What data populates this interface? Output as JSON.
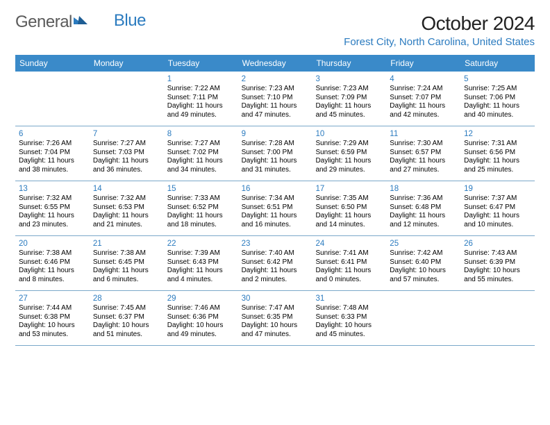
{
  "branding": {
    "logo_part1": "General",
    "logo_part2": "Blue"
  },
  "header": {
    "month_title": "October 2024",
    "location": "Forest City, North Carolina, United States"
  },
  "colors": {
    "header_bg": "#3a8ac9",
    "accent": "#2b7bbf",
    "divider": "#7aa8c9",
    "logo_gray": "#5a5a5a"
  },
  "day_names": [
    "Sunday",
    "Monday",
    "Tuesday",
    "Wednesday",
    "Thursday",
    "Friday",
    "Saturday"
  ],
  "weeks": [
    [
      null,
      null,
      {
        "n": "1",
        "sr": "Sunrise: 7:22 AM",
        "ss": "Sunset: 7:11 PM",
        "dl": "Daylight: 11 hours and 49 minutes."
      },
      {
        "n": "2",
        "sr": "Sunrise: 7:23 AM",
        "ss": "Sunset: 7:10 PM",
        "dl": "Daylight: 11 hours and 47 minutes."
      },
      {
        "n": "3",
        "sr": "Sunrise: 7:23 AM",
        "ss": "Sunset: 7:09 PM",
        "dl": "Daylight: 11 hours and 45 minutes."
      },
      {
        "n": "4",
        "sr": "Sunrise: 7:24 AM",
        "ss": "Sunset: 7:07 PM",
        "dl": "Daylight: 11 hours and 42 minutes."
      },
      {
        "n": "5",
        "sr": "Sunrise: 7:25 AM",
        "ss": "Sunset: 7:06 PM",
        "dl": "Daylight: 11 hours and 40 minutes."
      }
    ],
    [
      {
        "n": "6",
        "sr": "Sunrise: 7:26 AM",
        "ss": "Sunset: 7:04 PM",
        "dl": "Daylight: 11 hours and 38 minutes."
      },
      {
        "n": "7",
        "sr": "Sunrise: 7:27 AM",
        "ss": "Sunset: 7:03 PM",
        "dl": "Daylight: 11 hours and 36 minutes."
      },
      {
        "n": "8",
        "sr": "Sunrise: 7:27 AM",
        "ss": "Sunset: 7:02 PM",
        "dl": "Daylight: 11 hours and 34 minutes."
      },
      {
        "n": "9",
        "sr": "Sunrise: 7:28 AM",
        "ss": "Sunset: 7:00 PM",
        "dl": "Daylight: 11 hours and 31 minutes."
      },
      {
        "n": "10",
        "sr": "Sunrise: 7:29 AM",
        "ss": "Sunset: 6:59 PM",
        "dl": "Daylight: 11 hours and 29 minutes."
      },
      {
        "n": "11",
        "sr": "Sunrise: 7:30 AM",
        "ss": "Sunset: 6:57 PM",
        "dl": "Daylight: 11 hours and 27 minutes."
      },
      {
        "n": "12",
        "sr": "Sunrise: 7:31 AM",
        "ss": "Sunset: 6:56 PM",
        "dl": "Daylight: 11 hours and 25 minutes."
      }
    ],
    [
      {
        "n": "13",
        "sr": "Sunrise: 7:32 AM",
        "ss": "Sunset: 6:55 PM",
        "dl": "Daylight: 11 hours and 23 minutes."
      },
      {
        "n": "14",
        "sr": "Sunrise: 7:32 AM",
        "ss": "Sunset: 6:53 PM",
        "dl": "Daylight: 11 hours and 21 minutes."
      },
      {
        "n": "15",
        "sr": "Sunrise: 7:33 AM",
        "ss": "Sunset: 6:52 PM",
        "dl": "Daylight: 11 hours and 18 minutes."
      },
      {
        "n": "16",
        "sr": "Sunrise: 7:34 AM",
        "ss": "Sunset: 6:51 PM",
        "dl": "Daylight: 11 hours and 16 minutes."
      },
      {
        "n": "17",
        "sr": "Sunrise: 7:35 AM",
        "ss": "Sunset: 6:50 PM",
        "dl": "Daylight: 11 hours and 14 minutes."
      },
      {
        "n": "18",
        "sr": "Sunrise: 7:36 AM",
        "ss": "Sunset: 6:48 PM",
        "dl": "Daylight: 11 hours and 12 minutes."
      },
      {
        "n": "19",
        "sr": "Sunrise: 7:37 AM",
        "ss": "Sunset: 6:47 PM",
        "dl": "Daylight: 11 hours and 10 minutes."
      }
    ],
    [
      {
        "n": "20",
        "sr": "Sunrise: 7:38 AM",
        "ss": "Sunset: 6:46 PM",
        "dl": "Daylight: 11 hours and 8 minutes."
      },
      {
        "n": "21",
        "sr": "Sunrise: 7:38 AM",
        "ss": "Sunset: 6:45 PM",
        "dl": "Daylight: 11 hours and 6 minutes."
      },
      {
        "n": "22",
        "sr": "Sunrise: 7:39 AM",
        "ss": "Sunset: 6:43 PM",
        "dl": "Daylight: 11 hours and 4 minutes."
      },
      {
        "n": "23",
        "sr": "Sunrise: 7:40 AM",
        "ss": "Sunset: 6:42 PM",
        "dl": "Daylight: 11 hours and 2 minutes."
      },
      {
        "n": "24",
        "sr": "Sunrise: 7:41 AM",
        "ss": "Sunset: 6:41 PM",
        "dl": "Daylight: 11 hours and 0 minutes."
      },
      {
        "n": "25",
        "sr": "Sunrise: 7:42 AM",
        "ss": "Sunset: 6:40 PM",
        "dl": "Daylight: 10 hours and 57 minutes."
      },
      {
        "n": "26",
        "sr": "Sunrise: 7:43 AM",
        "ss": "Sunset: 6:39 PM",
        "dl": "Daylight: 10 hours and 55 minutes."
      }
    ],
    [
      {
        "n": "27",
        "sr": "Sunrise: 7:44 AM",
        "ss": "Sunset: 6:38 PM",
        "dl": "Daylight: 10 hours and 53 minutes."
      },
      {
        "n": "28",
        "sr": "Sunrise: 7:45 AM",
        "ss": "Sunset: 6:37 PM",
        "dl": "Daylight: 10 hours and 51 minutes."
      },
      {
        "n": "29",
        "sr": "Sunrise: 7:46 AM",
        "ss": "Sunset: 6:36 PM",
        "dl": "Daylight: 10 hours and 49 minutes."
      },
      {
        "n": "30",
        "sr": "Sunrise: 7:47 AM",
        "ss": "Sunset: 6:35 PM",
        "dl": "Daylight: 10 hours and 47 minutes."
      },
      {
        "n": "31",
        "sr": "Sunrise: 7:48 AM",
        "ss": "Sunset: 6:33 PM",
        "dl": "Daylight: 10 hours and 45 minutes."
      },
      null,
      null
    ]
  ]
}
